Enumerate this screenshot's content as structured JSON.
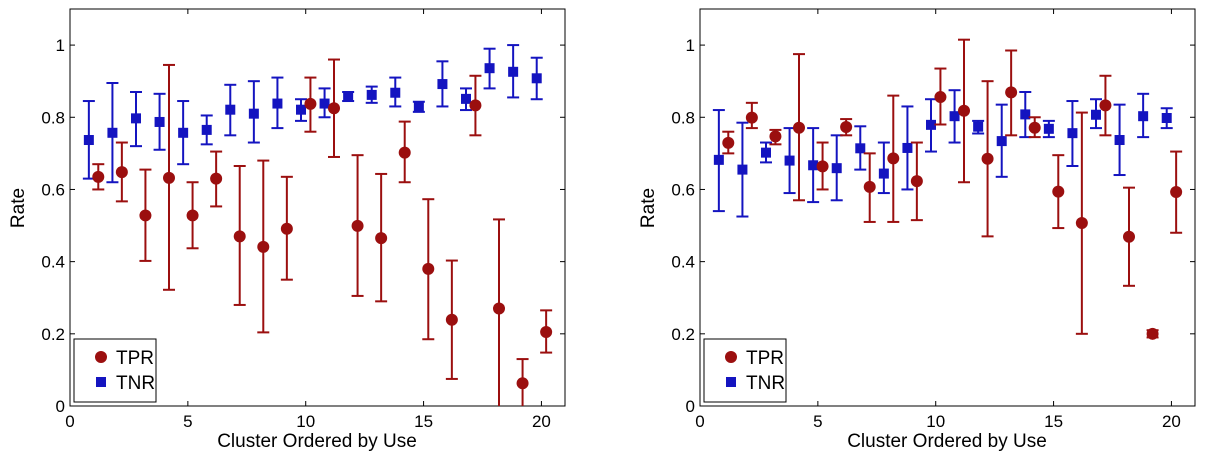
{
  "colors": {
    "tpr": "#9b0f0f",
    "tnr": "#1414c0",
    "axis": "#000000"
  },
  "chart_data": [
    {
      "type": "scatter",
      "xlabel": "Cluster Ordered by Use",
      "ylabel": "Rate",
      "xlim": [
        0,
        21
      ],
      "ylim": [
        0,
        1.1
      ],
      "xticks": [
        0,
        5,
        10,
        15,
        20
      ],
      "yticks": [
        0,
        0.2,
        0.4,
        0.6,
        0.8,
        1
      ],
      "ytick_labels": [
        "0",
        "0.2",
        "0.4",
        "0.6",
        "0.8",
        "1"
      ],
      "legend_placement": "bottom-left",
      "series": [
        {
          "name": "TPR",
          "marker": "circle",
          "x": [
            1.2,
            2.2,
            3.2,
            4.2,
            5.2,
            6.2,
            7.2,
            8.2,
            9.2,
            10.2,
            11.2,
            12.2,
            13.2,
            14.2,
            15.2,
            16.2,
            17.2,
            18.2,
            19.2,
            20.2
          ],
          "y": [
            0.635,
            0.648,
            0.528,
            0.632,
            0.528,
            0.63,
            0.47,
            0.441,
            0.491,
            0.837,
            0.825,
            0.499,
            0.465,
            0.702,
            0.38,
            0.239,
            0.833,
            0.27,
            0.063,
            0.205
          ],
          "err_low": [
            0.6,
            0.567,
            0.402,
            0.322,
            0.437,
            0.553,
            0.28,
            0.204,
            0.35,
            0.76,
            0.69,
            0.305,
            0.29,
            0.62,
            0.185,
            0.075,
            0.75,
            0.0,
            0.0,
            0.148
          ],
          "err_high": [
            0.67,
            0.73,
            0.655,
            0.945,
            0.62,
            0.705,
            0.665,
            0.68,
            0.635,
            0.91,
            0.96,
            0.695,
            0.643,
            0.788,
            0.573,
            0.403,
            0.915,
            0.517,
            0.13,
            0.265
          ]
        },
        {
          "name": "TNR",
          "marker": "square",
          "x": [
            0.8,
            1.8,
            2.8,
            3.8,
            4.8,
            5.8,
            6.8,
            7.8,
            8.8,
            9.8,
            10.8,
            11.8,
            12.8,
            13.8,
            14.8,
            15.8,
            16.8,
            17.8,
            18.8,
            19.8
          ],
          "y": [
            0.737,
            0.757,
            0.797,
            0.787,
            0.757,
            0.765,
            0.821,
            0.81,
            0.838,
            0.821,
            0.838,
            0.858,
            0.862,
            0.868,
            0.829,
            0.892,
            0.851,
            0.936,
            0.926,
            0.908
          ],
          "err_low": [
            0.63,
            0.62,
            0.72,
            0.71,
            0.67,
            0.725,
            0.75,
            0.73,
            0.77,
            0.79,
            0.8,
            0.845,
            0.84,
            0.83,
            0.815,
            0.83,
            0.82,
            0.88,
            0.855,
            0.85
          ],
          "err_high": [
            0.845,
            0.895,
            0.87,
            0.865,
            0.845,
            0.805,
            0.89,
            0.9,
            0.91,
            0.85,
            0.88,
            0.87,
            0.885,
            0.91,
            0.843,
            0.955,
            0.88,
            0.99,
            1.0,
            0.965
          ]
        }
      ]
    },
    {
      "type": "scatter",
      "xlabel": "Cluster Ordered by Use",
      "ylabel": "Rate",
      "xlim": [
        0,
        21
      ],
      "ylim": [
        0,
        1.1
      ],
      "xticks": [
        0,
        5,
        10,
        15,
        20
      ],
      "yticks": [
        0,
        0.2,
        0.4,
        0.6,
        0.8,
        1
      ],
      "ytick_labels": [
        "0",
        "0.2",
        "0.4",
        "0.6",
        "0.8",
        "1"
      ],
      "legend_placement": "bottom-left",
      "series": [
        {
          "name": "TPR",
          "marker": "circle",
          "x": [
            1.2,
            2.2,
            3.2,
            4.2,
            5.2,
            6.2,
            7.2,
            8.2,
            9.2,
            10.2,
            11.2,
            12.2,
            13.2,
            14.2,
            15.2,
            16.2,
            17.2,
            18.2,
            19.2,
            20.2
          ],
          "y": [
            0.729,
            0.799,
            0.747,
            0.771,
            0.664,
            0.773,
            0.607,
            0.686,
            0.623,
            0.856,
            0.818,
            0.685,
            0.869,
            0.771,
            0.594,
            0.507,
            0.833,
            0.469,
            0.2,
            0.593
          ],
          "err_low": [
            0.7,
            0.77,
            0.725,
            0.57,
            0.6,
            0.75,
            0.51,
            0.51,
            0.515,
            0.78,
            0.62,
            0.47,
            0.75,
            0.745,
            0.493,
            0.2,
            0.75,
            0.333,
            0.19,
            0.48
          ],
          "err_high": [
            0.76,
            0.84,
            0.765,
            0.975,
            0.73,
            0.795,
            0.7,
            0.86,
            0.73,
            0.935,
            1.015,
            0.9,
            0.985,
            0.8,
            0.695,
            0.813,
            0.915,
            0.605,
            0.21,
            0.705
          ]
        },
        {
          "name": "TNR",
          "marker": "square",
          "x": [
            0.8,
            1.8,
            2.8,
            3.8,
            4.8,
            5.8,
            6.8,
            7.8,
            8.8,
            9.8,
            10.8,
            11.8,
            12.8,
            13.8,
            14.8,
            15.8,
            16.8,
            17.8,
            18.8,
            19.8
          ],
          "y": [
            0.682,
            0.655,
            0.702,
            0.68,
            0.667,
            0.659,
            0.714,
            0.644,
            0.715,
            0.779,
            0.803,
            0.774,
            0.734,
            0.808,
            0.768,
            0.756,
            0.807,
            0.737,
            0.803,
            0.798
          ],
          "err_low": [
            0.54,
            0.525,
            0.675,
            0.59,
            0.565,
            0.57,
            0.655,
            0.59,
            0.6,
            0.705,
            0.73,
            0.755,
            0.635,
            0.745,
            0.745,
            0.665,
            0.77,
            0.64,
            0.745,
            0.77
          ],
          "err_high": [
            0.82,
            0.785,
            0.73,
            0.77,
            0.77,
            0.75,
            0.775,
            0.73,
            0.83,
            0.85,
            0.875,
            0.79,
            0.835,
            0.87,
            0.79,
            0.845,
            0.85,
            0.835,
            0.865,
            0.825
          ]
        }
      ]
    }
  ]
}
